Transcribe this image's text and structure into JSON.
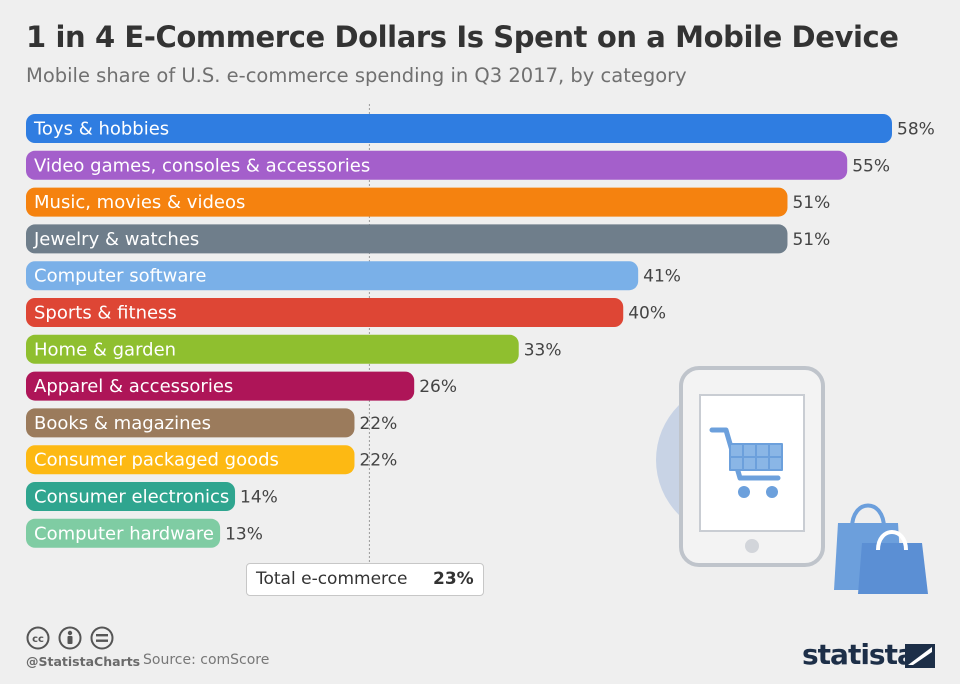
{
  "title": "1 in 4 E-Commerce Dollars Is Spent on a Mobile Device",
  "subtitle": "Mobile share of U.S. e-commerce spending in Q3 2017, by category",
  "chart_data": {
    "type": "bar",
    "orientation": "horizontal",
    "unit": "%",
    "categories": [
      "Toys & hobbies",
      "Video games, consoles & accessories",
      "Music, movies & videos",
      "Jewelry & watches",
      "Computer software",
      "Sports & fitness",
      "Home & garden",
      "Apparel & accessories",
      "Books & magazines",
      "Consumer packaged goods",
      "Consumer electronics",
      "Computer hardware"
    ],
    "values": [
      58,
      55,
      51,
      51,
      41,
      40,
      33,
      26,
      22,
      22,
      14,
      13
    ],
    "value_labels": [
      "58%",
      "55%",
      "51%",
      "51%",
      "41%",
      "40%",
      "33%",
      "26%",
      "22%",
      "22%",
      "14%",
      "13%"
    ],
    "colors": [
      "#2f7de1",
      "#a45fcb",
      "#f5820f",
      "#6f7e8b",
      "#7ab0e8",
      "#de4635",
      "#8fbf2f",
      "#ae1558",
      "#9b7b5c",
      "#fdb913",
      "#2fa58f",
      "#7fcca3"
    ],
    "reference_line": {
      "label": "Total e-commerce",
      "value": 23,
      "value_label": "23%"
    },
    "xlim": [
      0,
      58
    ],
    "grid": false,
    "legend": "none"
  },
  "footer": {
    "handle": "@StatistaCharts",
    "source": "Source: comScore",
    "brand": "statista",
    "license_icons": [
      "cc-icon",
      "by-icon",
      "nd-icon"
    ]
  }
}
